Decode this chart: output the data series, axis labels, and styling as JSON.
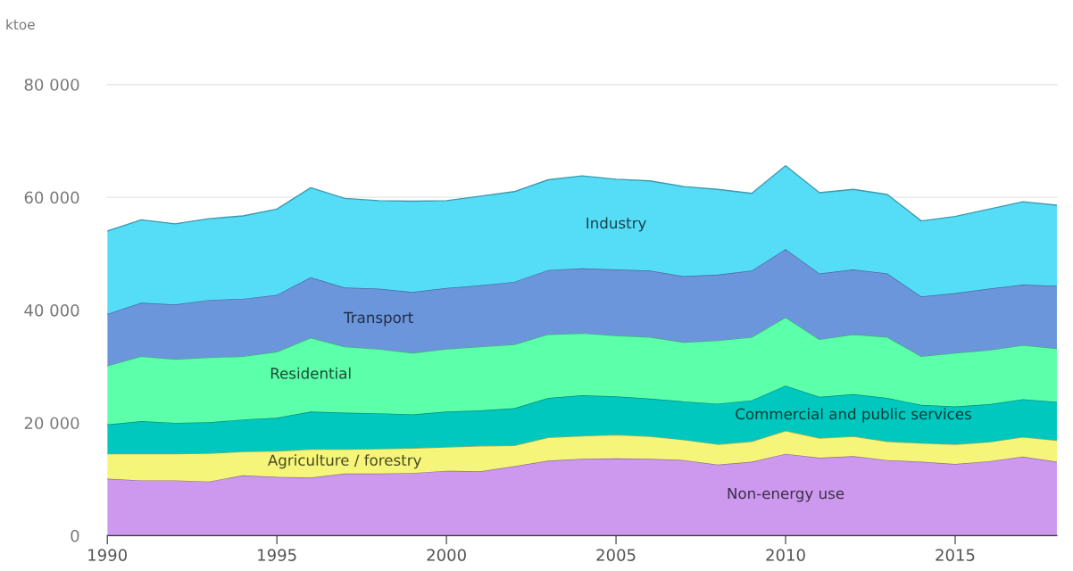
{
  "chart_data": {
    "type": "area",
    "stacked": true,
    "ylabel": "ktoe",
    "grid": "y",
    "legend": false,
    "x": [
      1990,
      1991,
      1992,
      1993,
      1994,
      1995,
      1996,
      1997,
      1998,
      1999,
      2000,
      2001,
      2002,
      2003,
      2004,
      2005,
      2006,
      2007,
      2008,
      2009,
      2010,
      2011,
      2012,
      2013,
      2014,
      2015,
      2016,
      2017,
      2018
    ],
    "xlim": [
      1990,
      2018
    ],
    "xticks": [
      1990,
      1995,
      2000,
      2005,
      2010,
      2015
    ],
    "ylim": [
      0,
      80000
    ],
    "yticks": [
      {
        "value": 0,
        "label": "0"
      },
      {
        "value": 20000,
        "label": "20 000"
      },
      {
        "value": 40000,
        "label": "40 000"
      },
      {
        "value": 60000,
        "label": "60 000"
      },
      {
        "value": 80000,
        "label": "80 000"
      }
    ],
    "series": [
      {
        "name": "Non-energy use",
        "color": "#cc99ee",
        "values": [
          10100,
          9800,
          9800,
          9600,
          10700,
          10400,
          10300,
          11000,
          11000,
          11100,
          11500,
          11400,
          12300,
          13300,
          13600,
          13700,
          13600,
          13400,
          12600,
          13100,
          14500,
          13800,
          14100,
          13400,
          13100,
          12700,
          13200,
          14000,
          13100
        ]
      },
      {
        "name": "Agriculture / forestry",
        "color": "#f5f57a",
        "values": [
          4400,
          4700,
          4700,
          5000,
          4200,
          4600,
          5000,
          4300,
          4400,
          4400,
          4200,
          4500,
          3700,
          4100,
          4100,
          4200,
          4000,
          3600,
          3600,
          3600,
          4100,
          3500,
          3500,
          3300,
          3300,
          3500,
          3400,
          3500,
          3800
        ]
      },
      {
        "name": "Commercial and public services",
        "color": "#00c8be",
        "values": [
          5200,
          5800,
          5500,
          5500,
          5700,
          5900,
          6700,
          6500,
          6300,
          6000,
          6300,
          6300,
          6600,
          7000,
          7200,
          6800,
          6700,
          6800,
          7200,
          7300,
          8000,
          7300,
          7500,
          7700,
          6800,
          6700,
          6700,
          6700,
          6800
        ]
      },
      {
        "name": "Residential",
        "color": "#5cffaa",
        "values": [
          10400,
          11500,
          11300,
          11500,
          11200,
          11700,
          13100,
          11700,
          11400,
          10900,
          11100,
          11300,
          11300,
          11300,
          11000,
          10800,
          10900,
          10500,
          11200,
          11200,
          12100,
          10200,
          10600,
          10800,
          8600,
          9500,
          9600,
          9600,
          9500
        ]
      },
      {
        "name": "Transport",
        "color": "#6b96dc",
        "values": [
          9200,
          9500,
          9700,
          10200,
          10200,
          10100,
          10700,
          10500,
          10700,
          10800,
          10800,
          10900,
          11100,
          11400,
          11500,
          11700,
          11800,
          11700,
          11700,
          11800,
          12100,
          11700,
          11500,
          11300,
          10600,
          10600,
          10900,
          10700,
          11100
        ]
      },
      {
        "name": "Industry",
        "color": "#55ddf8",
        "values": [
          14700,
          14700,
          14300,
          14400,
          14700,
          15200,
          15900,
          15800,
          15600,
          16100,
          15500,
          15800,
          16000,
          16000,
          16400,
          16000,
          15900,
          15900,
          15100,
          13700,
          14800,
          14300,
          14200,
          14000,
          13400,
          13600,
          14100,
          14700,
          14300
        ]
      }
    ]
  }
}
